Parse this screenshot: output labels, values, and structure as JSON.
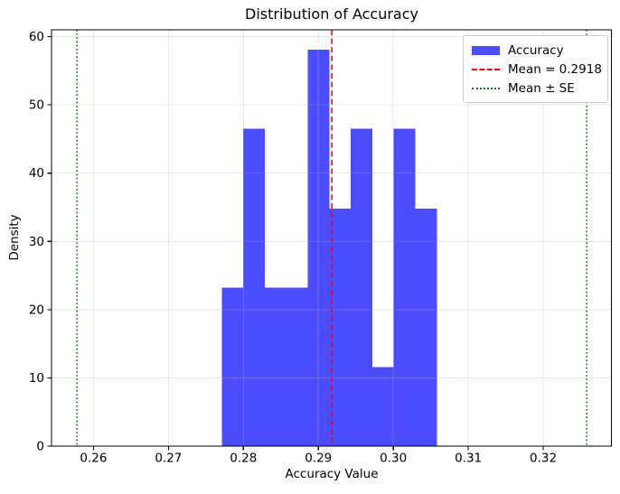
{
  "figure": {
    "title": "Distribution of Accuracy",
    "xlabel": "Accuracy Value",
    "ylabel": "Density"
  },
  "legend": {
    "position": "upper right",
    "items": [
      {
        "label": "Accuracy",
        "marker": "patch",
        "color": "#0000ff"
      },
      {
        "label": "Mean = 0.2918",
        "marker": "dashed",
        "color": "#ff0000"
      },
      {
        "label": "Mean ± SE",
        "marker": "dotted",
        "color": "#008000"
      }
    ]
  },
  "chart_data": {
    "type": "bar",
    "subtype": "histogram",
    "title": "Distribution of Accuracy",
    "xlabel": "Accuracy Value",
    "ylabel": "Density",
    "bin_edges": [
      0.2771,
      0.27997,
      0.28284,
      0.28571,
      0.28858,
      0.29145,
      0.29432,
      0.29719,
      0.30006,
      0.30293,
      0.3058
    ],
    "densities": [
      23.2,
      46.5,
      23.2,
      23.2,
      58.1,
      34.8,
      46.5,
      11.6,
      46.5,
      34.8
    ],
    "mean": 0.2918,
    "se": 0.034,
    "mean_minus_se": 0.2578,
    "mean_plus_se": 0.3258,
    "xlim": [
      0.2544,
      0.3291
    ],
    "ylim": [
      0,
      61.0
    ],
    "xticks": [
      0.26,
      0.27,
      0.28,
      0.29,
      0.3,
      0.31,
      0.32
    ],
    "yticks": [
      0,
      10,
      20,
      30,
      40,
      50,
      60
    ],
    "grid": true,
    "colors": {
      "bar": "#0000ff",
      "bar_alpha": 0.7,
      "mean_line": "#ff0000",
      "se_line": "#008000",
      "grid": "#b0b0b0",
      "grid_alpha": 0.3,
      "spine": "#000000",
      "text": "#000000"
    }
  }
}
